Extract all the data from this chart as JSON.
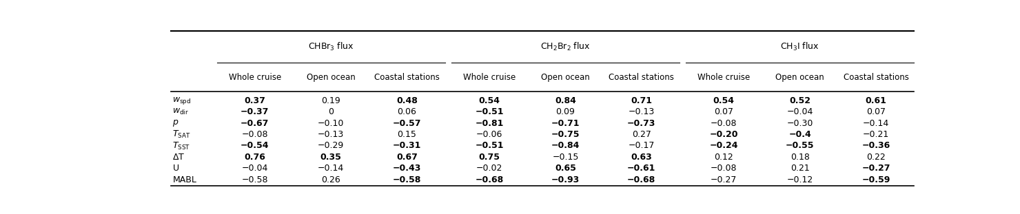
{
  "group_labels": [
    "CHBr$_3$ flux",
    "CH$_2$Br$_2$ flux",
    "CH$_3$I flux"
  ],
  "sub_labels": [
    "Whole cruise",
    "Open ocean",
    "Coastal stations"
  ],
  "row_labels_render": [
    "$w_{\\mathrm{spd}}$",
    "$w_{\\mathrm{dir}}$",
    "$p$",
    "$T_{\\mathrm{SAT}}$",
    "$T_{\\mathrm{SST}}$",
    "$\\Delta$T",
    "U",
    "MABL"
  ],
  "data": [
    [
      "0.37",
      "0.19",
      "0.48",
      "0.54",
      "0.84",
      "0.71",
      "0.54",
      "0.52",
      "0.61"
    ],
    [
      "-0.37",
      "0",
      "0.06",
      "-0.51",
      "0.09",
      "-0.13",
      "0.07",
      "-0.04",
      "0.07"
    ],
    [
      "-0.67",
      "-0.10",
      "-0.57",
      "-0.81",
      "-0.71",
      "-0.73",
      "-0.08",
      "-0.30",
      "-0.14"
    ],
    [
      "-0.08",
      "-0.13",
      "0.15",
      "-0.06",
      "-0.75",
      "0.27",
      "-0.20",
      "-0.4",
      "-0.21"
    ],
    [
      "-0.54",
      "-0.29",
      "-0.31",
      "-0.51",
      "-0.84",
      "-0.17",
      "-0.24",
      "-0.55",
      "-0.36"
    ],
    [
      "0.76",
      "0.35",
      "0.67",
      "0.75",
      "-0.15",
      "0.63",
      "0.12",
      "0.18",
      "0.22"
    ],
    [
      "-0.04",
      "-0.14",
      "-0.43",
      "-0.02",
      "0.65",
      "-0.61",
      "-0.08",
      "0.21",
      "-0.27"
    ],
    [
      "-0.58",
      "0.26",
      "-0.58",
      "-0.68",
      "-0.93",
      "-0.68",
      "-0.27",
      "-0.12",
      "-0.59"
    ]
  ],
  "bold": [
    [
      true,
      false,
      true,
      true,
      true,
      true,
      true,
      true,
      true
    ],
    [
      true,
      false,
      false,
      true,
      false,
      false,
      false,
      false,
      false
    ],
    [
      true,
      false,
      true,
      true,
      true,
      true,
      false,
      false,
      false
    ],
    [
      false,
      false,
      false,
      false,
      true,
      false,
      true,
      true,
      false
    ],
    [
      true,
      false,
      true,
      true,
      true,
      false,
      true,
      true,
      true
    ],
    [
      true,
      true,
      true,
      true,
      false,
      true,
      false,
      false,
      false
    ],
    [
      false,
      false,
      true,
      false,
      true,
      true,
      false,
      false,
      true
    ],
    [
      false,
      false,
      true,
      true,
      true,
      true,
      false,
      false,
      true
    ]
  ],
  "background_color": "#ffffff",
  "text_color": "#000000",
  "figsize": [
    14.8,
    3.11
  ],
  "dpi": 100
}
